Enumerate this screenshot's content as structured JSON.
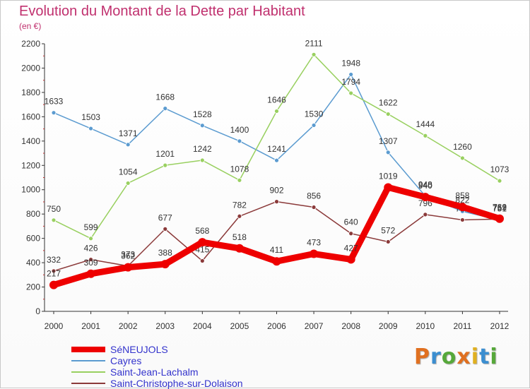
{
  "title": "Evolution du Montant de la Dette par Habitant",
  "subtitle": "(en €)",
  "logo": {
    "text": "Proxiti",
    "colors": [
      "#e07020",
      "#3b8ed0",
      "#56a83a",
      "#e07020",
      "#e0b020",
      "#3b8ed0",
      "#56a83a"
    ]
  },
  "chart_data": {
    "type": "line",
    "title": "Evolution du Montant de la Dette par Habitant",
    "subtitle": "(en €)",
    "xlabel": "",
    "ylabel": "",
    "ylim": [
      0,
      2200
    ],
    "yticks": [
      0,
      200,
      400,
      600,
      800,
      1000,
      1200,
      1400,
      1600,
      1800,
      2000,
      2200
    ],
    "grid": false,
    "legend_position": "bottom-left",
    "categories": [
      "2000",
      "2001",
      "2002",
      "2003",
      "2004",
      "2005",
      "2006",
      "2007",
      "2008",
      "2009",
      "2010",
      "2011",
      "2012"
    ],
    "series": [
      {
        "name": "Cayres",
        "color": "#5b9bd0",
        "values": [
          1633,
          1503,
          1371,
          1668,
          1528,
          1400,
          1241,
          1530,
          1948,
          1307,
          948,
          822,
          751
        ],
        "labels": [
          "1633",
          "1503",
          "1371",
          "1668",
          "1528",
          "1400",
          "1241",
          "1530",
          "1948",
          "1307",
          "948",
          "822",
          "751"
        ]
      },
      {
        "name": "Saint-Jean-Lachalm",
        "color": "#99d060",
        "values": [
          750,
          599,
          1054,
          1201,
          1242,
          1078,
          1646,
          2111,
          1794,
          1622,
          1444,
          1260,
          1073
        ],
        "labels": [
          "750",
          "599",
          "1054",
          "1201",
          "1242",
          "1078",
          "1646",
          "2111",
          "1794",
          "1622",
          "1444",
          "1260",
          "1073"
        ]
      },
      {
        "name": "Saint-Christophe-sur-Dolaison",
        "color": "#8b3a3a",
        "values": [
          332,
          426,
          373,
          677,
          415,
          782,
          902,
          856,
          640,
          572,
          796,
          752,
          759
        ],
        "labels": [
          "332",
          "426",
          "373",
          "677",
          "415",
          "782",
          "902",
          "856",
          "640",
          "572",
          "796",
          "752",
          "759"
        ]
      },
      {
        "name": "SéNEUJOLS",
        "color": "#ee0000",
        "values": [
          217,
          309,
          362,
          388,
          568,
          518,
          411,
          473,
          427,
          1019,
          940,
          858,
          762
        ],
        "labels": [
          "217",
          "309",
          "362",
          "388",
          "568",
          "518",
          "411",
          "473",
          "427",
          "1019",
          "940",
          "858",
          "762"
        ]
      }
    ]
  },
  "legend": [
    {
      "label": "SéNEUJOLS",
      "color": "#ee0000",
      "thick": true
    },
    {
      "label": "Cayres",
      "color": "#5b9bd0",
      "thick": false
    },
    {
      "label": "Saint-Jean-Lachalm",
      "color": "#99d060",
      "thick": false
    },
    {
      "label": "Saint-Christophe-sur-Dolaison",
      "color": "#8b3a3a",
      "thick": false
    }
  ]
}
